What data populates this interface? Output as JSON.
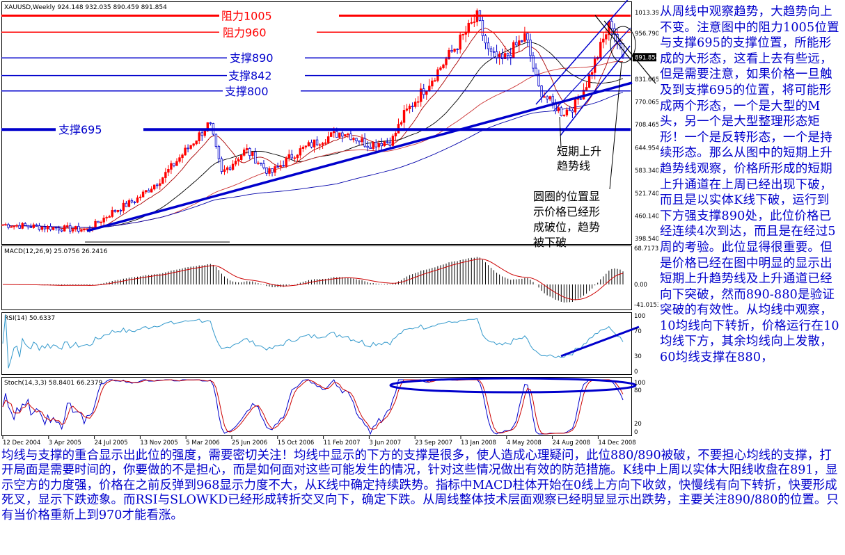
{
  "chart_data": [
    {
      "type": "candlestick",
      "header": "XAUUSD,Weekly  924.148 932.035 890.459 891.854",
      "ylim": [
        385,
        1040
      ],
      "y_ticks": [
        "1013.390",
        "956.790",
        "891.854",
        "831.665",
        "770.065",
        "708.465",
        "644.954",
        "583.340",
        "521.740",
        "460.140",
        "398.540"
      ],
      "price_anchors": [
        {
          "date": "2004-12",
          "price": 436
        },
        {
          "date": "2005-04",
          "price": 428
        },
        {
          "date": "2005-07",
          "price": 422
        },
        {
          "date": "2005-09",
          "price": 470
        },
        {
          "date": "2005-11",
          "price": 505
        },
        {
          "date": "2006-01",
          "price": 560
        },
        {
          "date": "2006-05",
          "price": 712
        },
        {
          "date": "2006-06",
          "price": 575
        },
        {
          "date": "2006-08",
          "price": 640
        },
        {
          "date": "2006-10",
          "price": 575
        },
        {
          "date": "2006-12",
          "price": 630
        },
        {
          "date": "2007-02",
          "price": 665
        },
        {
          "date": "2007-04",
          "price": 690
        },
        {
          "date": "2007-06",
          "price": 655
        },
        {
          "date": "2007-08",
          "price": 665
        },
        {
          "date": "2007-09",
          "price": 735
        },
        {
          "date": "2007-11",
          "price": 820
        },
        {
          "date": "2008-01",
          "price": 910
        },
        {
          "date": "2008-03",
          "price": 1000
        },
        {
          "date": "2008-04",
          "price": 900
        },
        {
          "date": "2008-05",
          "price": 880
        },
        {
          "date": "2008-07",
          "price": 950
        },
        {
          "date": "2008-08",
          "price": 810
        },
        {
          "date": "2008-09",
          "price": 770
        },
        {
          "date": "2008-10",
          "price": 740
        },
        {
          "date": "2008-11",
          "price": 760
        },
        {
          "date": "2008-12",
          "price": 820
        },
        {
          "date": "2009-02",
          "price": 990
        },
        {
          "date": "2009-03",
          "price": 892
        }
      ],
      "horizontal_levels": [
        {
          "label": "阻力1005",
          "price": 1005,
          "color": "#ff0000"
        },
        {
          "label": "阻力960",
          "price": 960,
          "color": "#ff0000"
        },
        {
          "label": "支撑890",
          "price": 890,
          "color": "#0000cc"
        },
        {
          "label": "支撑842",
          "price": 842,
          "color": "#0000cc"
        },
        {
          "label": "支撑800",
          "price": 800,
          "color": "#0000cc"
        },
        {
          "label": "支撑695",
          "price": 695,
          "color": "#0000cc"
        }
      ],
      "annotations": [
        "短期上升",
        "趋势线",
        "圆圈的位置显",
        "示价格已经形",
        "成破位，趋势",
        "被下破"
      ]
    },
    {
      "type": "histogram",
      "name": "MACD(12,26,9) 25.0756 26.2416",
      "y_ticks": [
        "68.7173",
        "0.00",
        "-41.0153"
      ]
    },
    {
      "type": "line",
      "name": "RSI(14) 50.6337",
      "y_ticks": [
        "100",
        "70",
        "30",
        "0"
      ]
    },
    {
      "type": "line",
      "name": "Stoch(14,3,3) 58.8401 66.2379",
      "y_ticks": [
        "100",
        "80",
        "20",
        "0"
      ]
    }
  ],
  "x_tick_labels": [
    "12 Dec 2004",
    "3 Apr 2005",
    "24 Jul 2005",
    "13 Nov 2005",
    "5 Mar 2006",
    "25 Jun 2006",
    "15 Oct 2006",
    "11 Feb 2007",
    "3 Jun 2007",
    "23 Sep 2007",
    "13 Jan 2008",
    "4 May 2008",
    "24 Aug 2008",
    "14 Dec 2008"
  ],
  "colors": {
    "up": "#ff0000",
    "down": "#0000cc",
    "resistance": "#ff0000",
    "support": "#0000cc",
    "text": "#0000cc"
  },
  "side_text": "从周线中观察趋势，大趋势向上不变。注意图中的阻力1005位置与支撑695的支撑位置，所能形成的大形态，这看上去有些远，但是需要注意，如果价格一旦触及到支撑695的位置，将可能形成两个形态，一个是大型的M头，另一个是大型整理形态矩形！一个是反转形态，一个是持续形态。那么从图中的短期上升趋势线观察，价格所形成的短期上升通道在上周已经出现下破，而且是以实体K线下破，运行到下方强支撑890处，此位价格已经连续4次到达，而且是在经过5周的考验。此位显得很重要。但是价格已经在图中明显的显示出短期上升趋势线及上升通道已经向下突破，然而890-880是验证突破的有效性。从均线中观察，10均线向下转折，价格运行在10均线下方，其余均线向上发散，60均线支撑在880，",
  "bottom_text": "均线与支撑的重合显示出此位的强度，需要密切关注！均线中显示的下方的支撑是很多，使人造成心理疑问，此位880/890被破，不要担心均线的支撑，打开局面是需要时间的，你要做的不是担心，而是如何面对这些可能发生的情况，针对这些情况做出有效的防范措施。K线中上周以实体大阳线收盘在891，显示空方的力度强，价格在之前反弹到968显示力度不大，从K线中确定持续跌势。指标中MACD柱体开始在0线上方向下收敛，快慢线有向下转折，快要形成死叉，显示下跌迹象。而RSI与SLOWKD已经形成转折交叉向下，确定下跌。从周线整体技术层面观察已经明显显示出跌势，主要关注890/880的位置。只有当价格重新上到970才能看涨。"
}
